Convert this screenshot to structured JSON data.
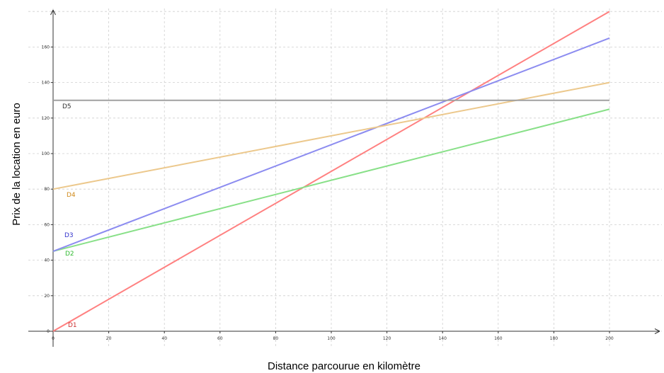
{
  "chart_data": {
    "type": "line",
    "title": "",
    "xlabel": "Distance parcourue en kilomètre",
    "ylabel": "Prix de la location en euro",
    "xlim": [
      -10,
      220
    ],
    "ylim": [
      -10,
      180
    ],
    "x_ticks": [
      0,
      20,
      40,
      60,
      80,
      100,
      120,
      140,
      160,
      180,
      200
    ],
    "y_ticks": [
      0,
      20,
      40,
      60,
      80,
      100,
      120,
      140,
      160
    ],
    "grid": true,
    "series": [
      {
        "name": "D1",
        "color": "#ff8080",
        "label_color": "#cc3333",
        "points": [
          [
            0,
            0
          ],
          [
            200,
            180
          ]
        ]
      },
      {
        "name": "D2",
        "color": "#88e088",
        "label_color": "#33bb33",
        "points": [
          [
            0,
            45
          ],
          [
            200,
            125
          ]
        ]
      },
      {
        "name": "D3",
        "color": "#8c8cf0",
        "label_color": "#3333cc",
        "points": [
          [
            0,
            45
          ],
          [
            200,
            165
          ]
        ]
      },
      {
        "name": "D4",
        "color": "#ecc88c",
        "label_color": "#d08a1a",
        "points": [
          [
            0,
            80
          ],
          [
            200,
            140
          ]
        ]
      },
      {
        "name": "D5",
        "color": "#a0a0a0",
        "label_color": "#333333",
        "points": [
          [
            0,
            130
          ],
          [
            200,
            130
          ]
        ]
      }
    ]
  }
}
